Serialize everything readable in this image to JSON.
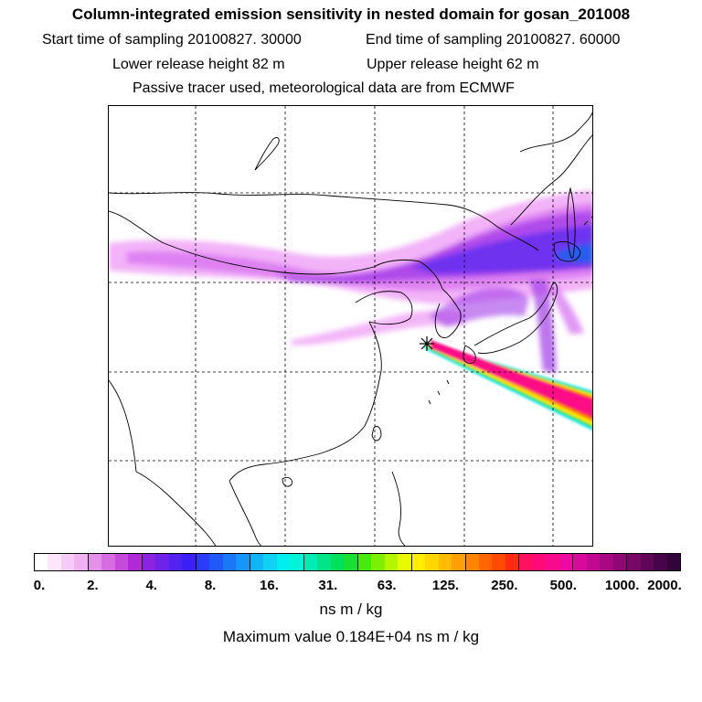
{
  "header": {
    "title": "Column-integrated emission sensitivity in nested domain for gosan_201008",
    "start_label": "Start time of sampling 20100827. 30000",
    "end_label": "End time of sampling 20100827. 60000",
    "lower_label": "Lower release height   82 m",
    "upper_label": "Upper release height   62 m",
    "tracer_note": "Passive tracer used, meteorological data are from ECMWF"
  },
  "colorbar": {
    "tick_labels": [
      "0.",
      "2.",
      "4.",
      "8.",
      "16.",
      "31.",
      "63.",
      "125.",
      "250.",
      "500.",
      "1000.",
      "2000."
    ],
    "colors": [
      "#ffffff",
      "#fbe6fb",
      "#f6ccf6",
      "#f0b2f0",
      "#e48fe8",
      "#d66be2",
      "#c44adc",
      "#b02ad6",
      "#8a24e0",
      "#6f22e8",
      "#5422ef",
      "#3a20f4",
      "#2a3cf8",
      "#1f5af8",
      "#1a78f8",
      "#1596f8",
      "#12b4f8",
      "#10d0f4",
      "#00eeee",
      "#00f4d8",
      "#00ecb4",
      "#00e488",
      "#00e05c",
      "#18e030",
      "#46ea0c",
      "#7cf000",
      "#b4f600",
      "#e8fa00",
      "#ffee00",
      "#ffd600",
      "#ffbc00",
      "#ffa000",
      "#ff8400",
      "#ff6600",
      "#ff4a00",
      "#ff2a10",
      "#ff1060",
      "#ff0a78",
      "#f80a8c",
      "#ee0aa0",
      "#d80a9c",
      "#c00890",
      "#a80882",
      "#900874",
      "#780866",
      "#600658",
      "#48044a",
      "#32043c"
    ],
    "unit": "ns m / kg",
    "max_text": "Maximum value  0.184E+04 ns m / kg"
  },
  "map": {
    "receptor": "gosan",
    "plume_colors": {
      "faint": "#ee99f5",
      "light": "#d56ef0",
      "mid": "#a23ce8",
      "strong": "#5a2cf0",
      "core_blue": "#1f60f0",
      "band_cyan": "#18e8ee",
      "band_green": "#40e040",
      "band_yellow": "#ffe800",
      "band_orange": "#ff9800",
      "band_red": "#ff3a22",
      "band_pink": "#ff0a86"
    }
  }
}
